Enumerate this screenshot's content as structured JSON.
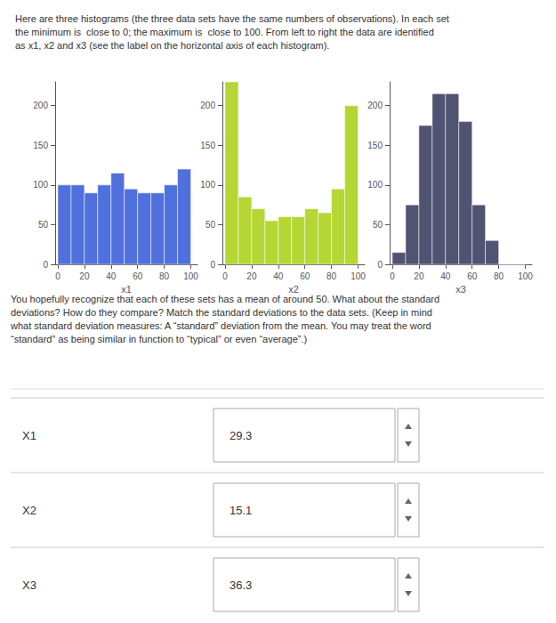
{
  "title": "Here are three histograms (the three data sets have the same numbers of observations). In each set\nthe minimum is  close to 0; the maximum is  close to 100. From left to right the data are identified\nas x1, x2 and x3 (see the label on the horizontal axis of each histogram).",
  "chart_data": [
    {
      "type": "histogram",
      "xlabel": "x1",
      "bins": [
        0,
        10,
        20,
        30,
        40,
        50,
        60,
        70,
        80,
        90,
        100
      ],
      "values": [
        100,
        100,
        90,
        100,
        115,
        95,
        90,
        90,
        100,
        120
      ],
      "xlim": [
        -2,
        105
      ],
      "xticks": [
        0,
        20,
        40,
        60,
        80,
        100
      ],
      "ylim": [
        0,
        230
      ],
      "yticks": [
        0,
        50,
        100,
        150,
        200
      ],
      "grid": false
    },
    {
      "type": "histogram",
      "xlabel": "x2",
      "bins": [
        0,
        10,
        20,
        30,
        40,
        50,
        60,
        70,
        80,
        90,
        100
      ],
      "values": [
        230,
        85,
        70,
        55,
        60,
        60,
        70,
        65,
        95,
        200
      ],
      "xlim": [
        -2,
        105
      ],
      "xticks": [
        0,
        20,
        40,
        60,
        80,
        100
      ],
      "ylim": [
        0,
        230
      ],
      "yticks": [
        0,
        50,
        100,
        150,
        200
      ],
      "grid": false
    },
    {
      "type": "histogram",
      "xlabel": "x3",
      "bins": [
        0,
        10,
        20,
        30,
        40,
        50,
        60,
        70,
        80,
        90,
        100
      ],
      "values": [
        15,
        75,
        175,
        215,
        215,
        180,
        75,
        30,
        0,
        0
      ],
      "xlim": [
        -2,
        105
      ],
      "xticks": [
        0,
        20,
        40,
        60,
        80,
        100
      ],
      "ylim": [
        0,
        230
      ],
      "yticks": [
        0,
        50,
        100,
        150,
        200
      ],
      "grid": false
    }
  ],
  "annotations": [
    "You hopefully recognize that each of these sets has a mean of around 50. What about the standard\ndeviations? How do they compare? Match the standard deviations to the data sets. (Keep in mind\nwhat standard deviation measures: A “standard” deviation from the mean. You may treat the word\n“standard” as being similar in function to “typical” or even “average”.)",
    "X1",
    "29.3",
    "X2",
    "15.1",
    "X3",
    "36.3"
  ]
}
